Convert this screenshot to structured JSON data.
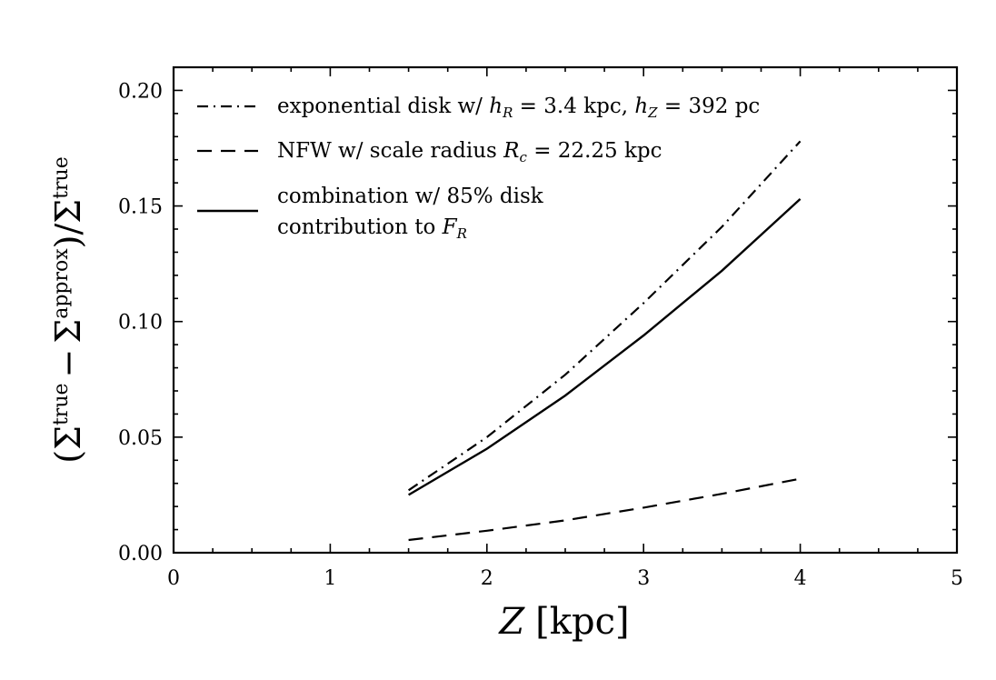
{
  "chart_data": {
    "type": "line",
    "xlabel": {
      "var": "Z",
      "unit": "[kpc]"
    },
    "ylabel": {
      "sigma": "Σ",
      "true": "true",
      "approx": "approx",
      "minus": "−"
    },
    "xlim": [
      0,
      5
    ],
    "ylim": [
      0,
      0.21
    ],
    "xticks": [
      "0",
      "1",
      "2",
      "3",
      "4",
      "5"
    ],
    "yticks": [
      "0.00",
      "0.05",
      "0.10",
      "0.15",
      "0.20"
    ],
    "grid": false,
    "legend_position": "top-left",
    "series": [
      {
        "id": "exponential-disk",
        "style": "dashdot",
        "legend": {
          "pre": "exponential disk w/ ",
          "hr_var": "h",
          "hr_sub": "R",
          "hr_val": " = 3.4 kpc, ",
          "hz_var": "h",
          "hz_sub": "Z",
          "hz_val": " = 392 pc"
        },
        "x": [
          1.5,
          2.0,
          2.5,
          3.0,
          3.5,
          4.0
        ],
        "y": [
          0.027,
          0.05,
          0.077,
          0.108,
          0.141,
          0.178
        ]
      },
      {
        "id": "nfw",
        "style": "dashed",
        "legend": {
          "pre": "NFW w/ scale radius ",
          "rc_var": "R",
          "rc_sub": "c",
          "rc_val": " = 22.25 kpc"
        },
        "x": [
          1.5,
          2.0,
          2.5,
          3.0,
          3.5,
          4.0
        ],
        "y": [
          0.0055,
          0.0095,
          0.014,
          0.0195,
          0.0255,
          0.032
        ]
      },
      {
        "id": "combination",
        "style": "solid",
        "legend": {
          "line1": "combination w/ 85% disk",
          "line2_pre": "contribution to ",
          "fr_var": "F",
          "fr_sub": "R"
        },
        "x": [
          1.5,
          2.0,
          2.5,
          3.0,
          3.5,
          4.0
        ],
        "y": [
          0.025,
          0.045,
          0.068,
          0.094,
          0.122,
          0.153
        ]
      }
    ]
  }
}
